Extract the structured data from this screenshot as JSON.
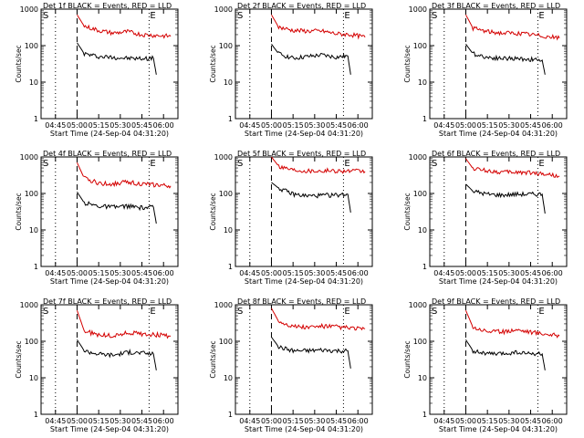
{
  "colors": {
    "events": "#000000",
    "lld": "#d40000",
    "axis": "#000000"
  },
  "chart_data": [
    {
      "type": "line",
      "title": "Det 1f BLACK = Events, RED = LLD",
      "xlabel": "Start Time (24-Sep-04 04:31:20)",
      "ylabel": "Counts/sec",
      "yscale": "log",
      "ylim": [
        1,
        1000
      ],
      "x_ticks": [
        "04:45",
        "05:00",
        "05:15",
        "05:30",
        "05:45",
        "06:00"
      ],
      "y_ticks": [
        "1",
        "10",
        "100",
        "1000"
      ],
      "markers": {
        "start_label": "S",
        "end_label": "E",
        "dotted_times": [
          "04:45",
          "05:50"
        ],
        "dashed_time": "05:00"
      },
      "series": [
        {
          "name": "Events",
          "color": "#000000",
          "x": [
            "05:00",
            "05:05",
            "05:15",
            "05:25",
            "05:35",
            "05:45",
            "05:53",
            "05:55"
          ],
          "values": [
            120,
            60,
            50,
            48,
            45,
            44,
            45,
            16
          ]
        },
        {
          "name": "LLD",
          "color": "#d40000",
          "x": [
            "05:00",
            "05:05",
            "05:15",
            "05:25",
            "05:35",
            "05:45",
            "05:55",
            "06:05"
          ],
          "values": [
            700,
            340,
            260,
            220,
            240,
            200,
            190,
            180
          ]
        }
      ]
    },
    {
      "type": "line",
      "title": "Det 2f BLACK = Events, RED = LLD",
      "xlabel": "Start Time (24-Sep-04 04:31:20)",
      "ylabel": "Counts/sec",
      "yscale": "log",
      "ylim": [
        1,
        1000
      ],
      "x_ticks": [
        "04:45",
        "05:00",
        "05:15",
        "05:30",
        "05:45",
        "06:00"
      ],
      "y_ticks": [
        "1",
        "10",
        "100",
        "1000"
      ],
      "markers": {
        "start_label": "S",
        "end_label": "E",
        "dotted_times": [
          "04:45",
          "05:50"
        ],
        "dashed_time": "05:00"
      },
      "series": [
        {
          "name": "Events",
          "color": "#000000",
          "x": [
            "05:00",
            "05:05",
            "05:15",
            "05:25",
            "05:35",
            "05:45",
            "05:53",
            "05:55"
          ],
          "values": [
            110,
            60,
            45,
            50,
            55,
            48,
            52,
            16
          ]
        },
        {
          "name": "LLD",
          "color": "#d40000",
          "x": [
            "05:00",
            "05:05",
            "05:15",
            "05:25",
            "05:35",
            "05:45",
            "05:55",
            "06:05"
          ],
          "values": [
            700,
            320,
            260,
            250,
            250,
            210,
            200,
            170
          ]
        }
      ]
    },
    {
      "type": "line",
      "title": "Det 3f BLACK = Events, RED = LLD",
      "xlabel": "Start Time (24-Sep-04 04:31:20)",
      "ylabel": "Counts/sec",
      "yscale": "log",
      "ylim": [
        1,
        1000
      ],
      "x_ticks": [
        "04:45",
        "05:00",
        "05:15",
        "05:30",
        "05:45",
        "06:00"
      ],
      "y_ticks": [
        "1",
        "10",
        "100",
        "1000"
      ],
      "markers": {
        "start_label": "S",
        "end_label": "E",
        "dotted_times": [
          "04:45",
          "05:50"
        ],
        "dashed_time": "05:00"
      },
      "series": [
        {
          "name": "Events",
          "color": "#000000",
          "x": [
            "05:00",
            "05:05",
            "05:15",
            "05:25",
            "05:35",
            "05:45",
            "05:53",
            "05:55"
          ],
          "values": [
            110,
            60,
            48,
            45,
            44,
            42,
            40,
            16
          ]
        },
        {
          "name": "LLD",
          "color": "#d40000",
          "x": [
            "05:00",
            "05:05",
            "05:15",
            "05:25",
            "05:35",
            "05:45",
            "05:55",
            "06:05"
          ],
          "values": [
            700,
            300,
            240,
            220,
            220,
            200,
            180,
            160
          ]
        }
      ]
    },
    {
      "type": "line",
      "title": "Det 4f BLACK = Events, RED = LLD",
      "xlabel": "Start Time (24-Sep-04 04:31:20)",
      "ylabel": "Counts/sec",
      "yscale": "log",
      "ylim": [
        1,
        1000
      ],
      "x_ticks": [
        "04:45",
        "05:00",
        "05:15",
        "05:30",
        "05:45",
        "06:00"
      ],
      "y_ticks": [
        "1",
        "10",
        "100",
        "1000"
      ],
      "markers": {
        "start_label": "S",
        "end_label": "E",
        "dotted_times": [
          "04:45",
          "05:50"
        ],
        "dashed_time": "05:00"
      },
      "series": [
        {
          "name": "Events",
          "color": "#000000",
          "x": [
            "05:00",
            "05:05",
            "05:15",
            "05:25",
            "05:35",
            "05:45",
            "05:53",
            "05:55"
          ],
          "values": [
            110,
            55,
            45,
            42,
            45,
            40,
            42,
            15
          ]
        },
        {
          "name": "LLD",
          "color": "#d40000",
          "x": [
            "05:00",
            "05:05",
            "05:15",
            "05:25",
            "05:35",
            "05:45",
            "05:55",
            "06:05"
          ],
          "values": [
            700,
            260,
            190,
            180,
            210,
            180,
            170,
            160
          ]
        }
      ]
    },
    {
      "type": "line",
      "title": "Det 5f BLACK = Events, RED = LLD",
      "xlabel": "Start Time (24-Sep-04 04:31:20)",
      "ylabel": "Counts/sec",
      "yscale": "log",
      "ylim": [
        1,
        1000
      ],
      "x_ticks": [
        "04:45",
        "05:00",
        "05:15",
        "05:30",
        "05:45",
        "06:00"
      ],
      "y_ticks": [
        "1",
        "10",
        "100",
        "1000"
      ],
      "markers": {
        "start_label": "S",
        "end_label": "E",
        "dotted_times": [
          "04:45",
          "05:50"
        ],
        "dashed_time": "05:00"
      },
      "series": [
        {
          "name": "Events",
          "color": "#000000",
          "x": [
            "05:00",
            "05:05",
            "05:15",
            "05:25",
            "05:35",
            "05:45",
            "05:53",
            "05:55"
          ],
          "values": [
            200,
            140,
            95,
            85,
            88,
            90,
            95,
            30
          ]
        },
        {
          "name": "LLD",
          "color": "#d40000",
          "x": [
            "05:00",
            "05:05",
            "05:15",
            "05:25",
            "05:35",
            "05:45",
            "05:55",
            "06:05"
          ],
          "values": [
            1000,
            560,
            450,
            420,
            420,
            420,
            410,
            400
          ]
        }
      ]
    },
    {
      "type": "line",
      "title": "Det 6f BLACK = Events, RED = LLD",
      "xlabel": "Start Time (24-Sep-04 04:31:20)",
      "ylabel": "Counts/sec",
      "yscale": "log",
      "ylim": [
        1,
        1000
      ],
      "x_ticks": [
        "04:45",
        "05:00",
        "05:15",
        "05:30",
        "05:45",
        "06:00"
      ],
      "y_ticks": [
        "1",
        "10",
        "100",
        "1000"
      ],
      "markers": {
        "start_label": "S",
        "end_label": "E",
        "dotted_times": [
          "04:45",
          "05:50"
        ],
        "dashed_time": "05:00"
      },
      "series": [
        {
          "name": "Events",
          "color": "#000000",
          "x": [
            "05:00",
            "05:05",
            "05:15",
            "05:25",
            "05:35",
            "05:45",
            "05:53",
            "05:55"
          ],
          "values": [
            180,
            115,
            95,
            90,
            95,
            95,
            95,
            28
          ]
        },
        {
          "name": "LLD",
          "color": "#d40000",
          "x": [
            "05:00",
            "05:05",
            "05:15",
            "05:25",
            "05:35",
            "05:45",
            "05:55",
            "06:05"
          ],
          "values": [
            900,
            480,
            420,
            380,
            380,
            370,
            340,
            300
          ]
        }
      ]
    },
    {
      "type": "line",
      "title": "Det 7f BLACK = Events, RED = LLD",
      "xlabel": "Start Time (24-Sep-04 04:31:20)",
      "ylabel": "Counts/sec",
      "yscale": "log",
      "ylim": [
        1,
        1000
      ],
      "x_ticks": [
        "04:45",
        "05:00",
        "05:15",
        "05:30",
        "05:45",
        "06:00"
      ],
      "y_ticks": [
        "1",
        "10",
        "100",
        "1000"
      ],
      "markers": {
        "start_label": "S",
        "end_label": "E",
        "dotted_times": [
          "04:45",
          "05:50"
        ],
        "dashed_time": "05:00"
      },
      "series": [
        {
          "name": "Events",
          "color": "#000000",
          "x": [
            "05:00",
            "05:05",
            "05:15",
            "05:25",
            "05:35",
            "05:45",
            "05:53",
            "05:55"
          ],
          "values": [
            110,
            55,
            45,
            42,
            50,
            48,
            45,
            16
          ]
        },
        {
          "name": "LLD",
          "color": "#d40000",
          "x": [
            "05:00",
            "05:05",
            "05:15",
            "05:25",
            "05:35",
            "05:45",
            "05:55",
            "06:05"
          ],
          "values": [
            700,
            190,
            150,
            140,
            170,
            160,
            150,
            140
          ]
        }
      ]
    },
    {
      "type": "line",
      "title": "Det 8f BLACK = Events, RED = LLD",
      "xlabel": "Start Time (24-Sep-04 04:31:20)",
      "ylabel": "Counts/sec",
      "yscale": "log",
      "ylim": [
        1,
        1000
      ],
      "x_ticks": [
        "04:45",
        "05:00",
        "05:15",
        "05:30",
        "05:45",
        "06:00"
      ],
      "y_ticks": [
        "1",
        "10",
        "100",
        "1000"
      ],
      "markers": {
        "start_label": "S",
        "end_label": "E",
        "dotted_times": [
          "04:45",
          "05:50"
        ],
        "dashed_time": "05:00"
      },
      "series": [
        {
          "name": "Events",
          "color": "#000000",
          "x": [
            "05:00",
            "05:05",
            "05:15",
            "05:25",
            "05:35",
            "05:45",
            "05:53",
            "05:55"
          ],
          "values": [
            130,
            70,
            55,
            55,
            58,
            55,
            55,
            18
          ]
        },
        {
          "name": "LLD",
          "color": "#d40000",
          "x": [
            "05:00",
            "05:05",
            "05:15",
            "05:25",
            "05:35",
            "05:45",
            "05:55",
            "06:05"
          ],
          "values": [
            800,
            350,
            260,
            240,
            260,
            250,
            230,
            220
          ]
        }
      ]
    },
    {
      "type": "line",
      "title": "Det 9f BLACK = Events, RED = LLD",
      "xlabel": "Start Time (24-Sep-04 04:31:20)",
      "ylabel": "Counts/sec",
      "yscale": "log",
      "ylim": [
        1,
        1000
      ],
      "x_ticks": [
        "04:45",
        "05:00",
        "05:15",
        "05:30",
        "05:45",
        "06:00"
      ],
      "y_ticks": [
        "1",
        "10",
        "100",
        "1000"
      ],
      "markers": {
        "start_label": "S",
        "end_label": "E",
        "dotted_times": [
          "04:45",
          "05:50"
        ],
        "dashed_time": "05:00"
      },
      "series": [
        {
          "name": "Events",
          "color": "#000000",
          "x": [
            "05:00",
            "05:05",
            "05:15",
            "05:25",
            "05:35",
            "05:45",
            "05:53",
            "05:55"
          ],
          "values": [
            110,
            55,
            45,
            45,
            50,
            45,
            45,
            16
          ]
        },
        {
          "name": "LLD",
          "color": "#d40000",
          "x": [
            "05:00",
            "05:05",
            "05:15",
            "05:25",
            "05:35",
            "05:45",
            "05:55",
            "06:05"
          ],
          "values": [
            700,
            240,
            190,
            180,
            210,
            180,
            160,
            140
          ]
        }
      ]
    }
  ]
}
